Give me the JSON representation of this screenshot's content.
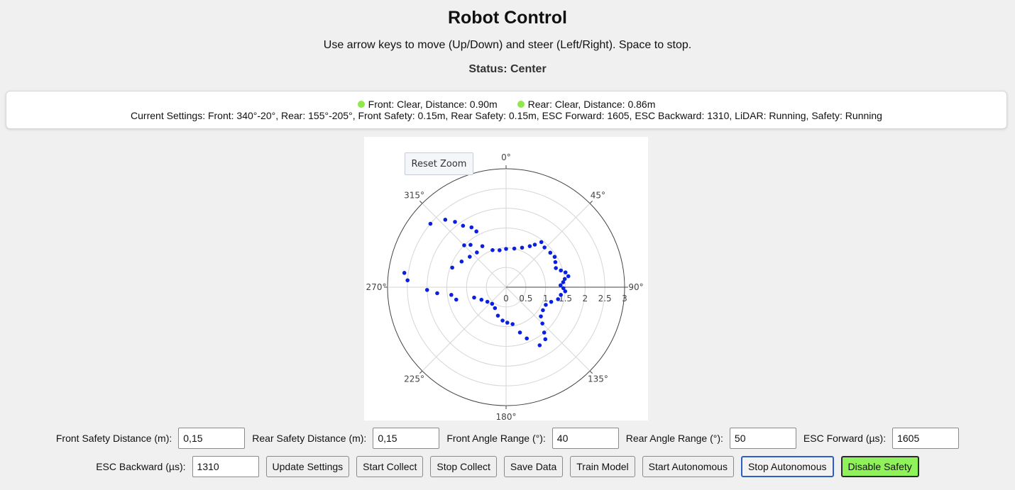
{
  "header": {
    "title": "Robot Control",
    "instructions": "Use arrow keys to move (Up/Down) and steer (Left/Right). Space to stop.",
    "status": "Status: Center"
  },
  "sensors": {
    "front": "Front: Clear, Distance: 0.90m",
    "rear": "Rear: Clear, Distance: 0.86m",
    "indicator_color": "#8ee84a",
    "settings_summary": "Current Settings: Front: 340°-20°, Rear: 155°-205°, Front Safety: 0.15m, Rear Safety: 0.15m, ESC Forward: 1605, ESC Backward: 1310, LiDAR: Running, Safety: Running"
  },
  "plot": {
    "reset_zoom_label": "Reset Zoom",
    "angular_labels": [
      "0°",
      "45°",
      "90°",
      "135°",
      "180°",
      "225°",
      "270°",
      "315°"
    ],
    "radial_labels": [
      "0",
      "0.5",
      "1",
      "1.5",
      "2",
      "2.5",
      "3"
    ],
    "point_color": "#0a1fe0"
  },
  "chart_data": {
    "type": "scatter",
    "coordinate_system": "polar",
    "angular_direction": "clockwise",
    "angular_zero": "top",
    "rlim": [
      0,
      3
    ],
    "grid": true,
    "series": [
      {
        "points_r_theta": [
          [
            0.97,
            0
          ],
          [
            1.0,
            12
          ],
          [
            1.08,
            22
          ],
          [
            1.2,
            30
          ],
          [
            1.3,
            34
          ],
          [
            1.45,
            38
          ],
          [
            1.4,
            44
          ],
          [
            1.42,
            52
          ],
          [
            1.45,
            58
          ],
          [
            1.4,
            63
          ],
          [
            1.35,
            69
          ],
          [
            1.45,
            73
          ],
          [
            1.55,
            76
          ],
          [
            1.6,
            80
          ],
          [
            1.5,
            82
          ],
          [
            1.45,
            85
          ],
          [
            1.38,
            88
          ],
          [
            1.45,
            91
          ],
          [
            1.5,
            94
          ],
          [
            1.4,
            98
          ],
          [
            1.35,
            103
          ],
          [
            1.2,
            108
          ],
          [
            1.1,
            114
          ],
          [
            1.1,
            122
          ],
          [
            1.15,
            130
          ],
          [
            1.3,
            135
          ],
          [
            1.5,
            140
          ],
          [
            1.65,
            143
          ],
          [
            1.7,
            150
          ],
          [
            1.4,
            158
          ],
          [
            1.2,
            163
          ],
          [
            0.95,
            170
          ],
          [
            0.9,
            178
          ],
          [
            0.85,
            186
          ],
          [
            0.75,
            196
          ],
          [
            0.6,
            208
          ],
          [
            0.55,
            220
          ],
          [
            0.6,
            232
          ],
          [
            0.7,
            243
          ],
          [
            0.85,
            252
          ],
          [
            1.3,
            256
          ],
          [
            1.4,
            262
          ],
          [
            1.75,
            265
          ],
          [
            2.0,
            268
          ],
          [
            2.5,
            274
          ],
          [
            2.6,
            278
          ],
          [
            1.45,
            290
          ],
          [
            1.3,
            300
          ],
          [
            1.2,
            310
          ],
          [
            1.15,
            320
          ],
          [
            1.2,
            330
          ],
          [
            1.0,
            340
          ],
          [
            0.95,
            350
          ],
          [
            2.5,
            310
          ],
          [
            2.3,
            318
          ],
          [
            2.1,
            322
          ],
          [
            1.9,
            325
          ],
          [
            1.75,
            330
          ],
          [
            1.6,
            332
          ],
          [
            1.5,
            315
          ],
          [
            1.4,
            320
          ]
        ]
      }
    ]
  },
  "controls": {
    "front_safety_label": "Front Safety Distance (m):",
    "front_safety_value": "0,15",
    "rear_safety_label": "Rear Safety Distance (m):",
    "rear_safety_value": "0,15",
    "front_angle_label": "Front Angle Range (°):",
    "front_angle_value": "40",
    "rear_angle_label": "Rear Angle Range (°):",
    "rear_angle_value": "50",
    "esc_forward_label": "ESC Forward (µs):",
    "esc_forward_value": "1605",
    "esc_backward_label": "ESC Backward (µs):",
    "esc_backward_value": "1310",
    "buttons": {
      "update_settings": "Update Settings",
      "start_collect": "Start Collect",
      "stop_collect": "Stop Collect",
      "save_data": "Save Data",
      "train_model": "Train Model",
      "start_autonomous": "Start Autonomous",
      "stop_autonomous": "Stop Autonomous",
      "disable_safety": "Disable Safety"
    },
    "safety_button_color": "#8ff25a"
  }
}
